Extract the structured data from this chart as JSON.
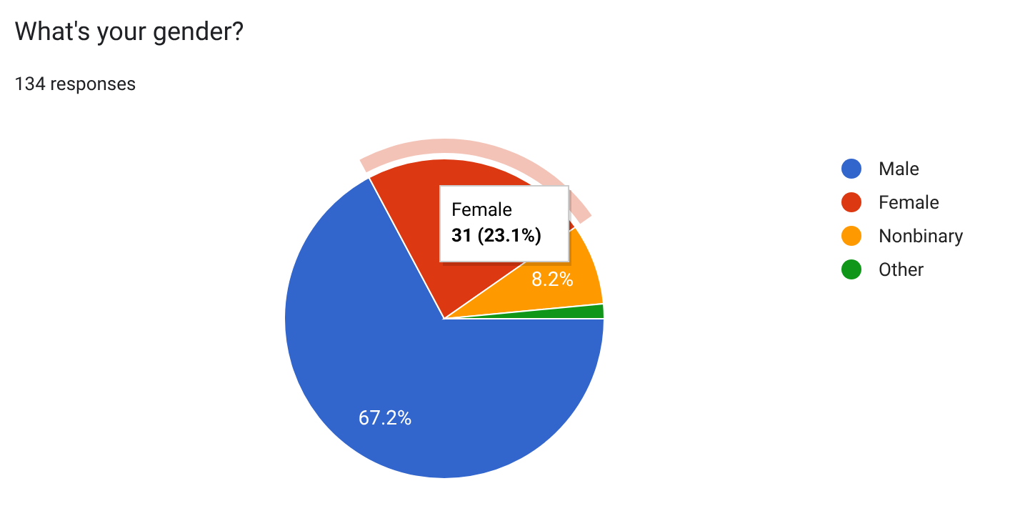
{
  "chart_data": {
    "type": "pie",
    "title": "What's your gender?",
    "subtitle": "134 responses",
    "categories": [
      "Male",
      "Female",
      "Nonbinary",
      "Other"
    ],
    "values": [
      67.2,
      23.1,
      8.2,
      1.5
    ],
    "colors": [
      "#3366cc",
      "#dc3912",
      "#ff9900",
      "#109618"
    ],
    "value_labels": [
      "67.2%",
      null,
      "8.2%",
      null
    ],
    "annotations": [
      "Female",
      "31 (23.1%)"
    ],
    "legend": "right"
  }
}
